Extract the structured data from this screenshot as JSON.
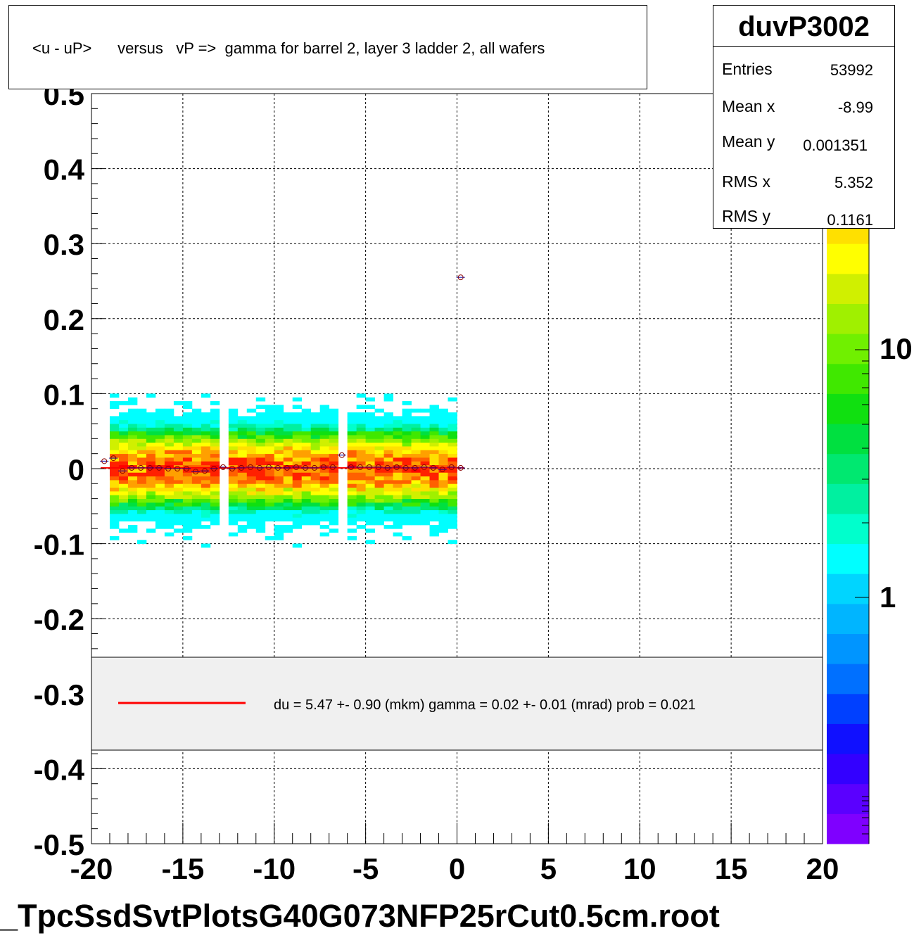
{
  "title": "<u - uP>      versus   vP =>  gamma for barrel 2, layer 3 ladder 2, all wafers",
  "stats": {
    "name": "duvP3002",
    "rows": [
      {
        "label": "Entries",
        "value": "53992"
      },
      {
        "label": "Mean x",
        "value": "-8.99"
      },
      {
        "label": "Mean y",
        "value": "0.001351"
      },
      {
        "label": "RMS x",
        "value": "5.352"
      },
      {
        "label": "RMS y",
        "value": "0.1161"
      }
    ]
  },
  "legend": {
    "text": "du =    5.47 +-  0.90 (mkm) gamma =    0.02 +-  0.01 (mrad) prob = 0.021",
    "line_color": "#ff0000"
  },
  "file_label": "_TpcSsdSvtPlotsG40G073NFP25rCut0.5cm.root",
  "palette": [
    "#7f00ff",
    "#5a00ff",
    "#3300ff",
    "#1010ff",
    "#0040ff",
    "#0070ff",
    "#0095ff",
    "#00b5ff",
    "#00d5ff",
    "#00ffff",
    "#00ffcc",
    "#00f0a0",
    "#00e870",
    "#00e040",
    "#10e010",
    "#40e800",
    "#70f000",
    "#a0f000",
    "#d0f000",
    "#ffff00",
    "#ffe000",
    "#ffa000",
    "#ff6000",
    "#ff2000",
    "#ff0000"
  ],
  "chart_data": {
    "type": "heatmap",
    "xlim": [
      -20,
      20
    ],
    "ylim": [
      -0.5,
      0.5
    ],
    "x_ticks": [
      "-20",
      "-15",
      "-10",
      "-5",
      "0",
      "5",
      "10",
      "15",
      "20"
    ],
    "y_ticks": [
      "-0.5",
      "-0.4",
      "-0.3",
      "-0.2",
      "-0.1",
      "0",
      "0.1",
      "0.2",
      "0.3",
      "0.4",
      "0.5"
    ],
    "z_tick_labels": [
      "1",
      "10"
    ],
    "z_clipped_label": "0",
    "grid": true,
    "log_z": true,
    "populated_x_range": [
      -19,
      0
    ],
    "gaps_x": [
      -12.6,
      -6.1
    ],
    "profile_points": [
      {
        "x": -19.3,
        "y": 0.01
      },
      {
        "x": -18.8,
        "y": 0.014
      },
      {
        "x": -18.3,
        "y": -0.003
      },
      {
        "x": -17.8,
        "y": 0.001
      },
      {
        "x": -17.3,
        "y": 0.001
      },
      {
        "x": -16.8,
        "y": 0.001
      },
      {
        "x": -16.3,
        "y": 0.001
      },
      {
        "x": -15.8,
        "y": 0.0
      },
      {
        "x": -15.3,
        "y": 0.0
      },
      {
        "x": -14.8,
        "y": 0.0
      },
      {
        "x": -14.3,
        "y": -0.004
      },
      {
        "x": -13.8,
        "y": -0.003
      },
      {
        "x": -13.3,
        "y": 0.0
      },
      {
        "x": -12.8,
        "y": 0.002
      },
      {
        "x": -12.3,
        "y": 0.0
      },
      {
        "x": -11.8,
        "y": 0.001
      },
      {
        "x": -11.3,
        "y": 0.002
      },
      {
        "x": -10.8,
        "y": 0.001
      },
      {
        "x": -10.3,
        "y": 0.002
      },
      {
        "x": -9.8,
        "y": 0.001
      },
      {
        "x": -9.3,
        "y": 0.001
      },
      {
        "x": -8.8,
        "y": 0.002
      },
      {
        "x": -8.3,
        "y": 0.001
      },
      {
        "x": -7.8,
        "y": 0.001
      },
      {
        "x": -7.3,
        "y": 0.002
      },
      {
        "x": -6.8,
        "y": 0.002
      },
      {
        "x": -6.3,
        "y": 0.018
      },
      {
        "x": -5.8,
        "y": 0.002
      },
      {
        "x": -5.3,
        "y": 0.002
      },
      {
        "x": -4.8,
        "y": 0.002
      },
      {
        "x": -4.3,
        "y": 0.002
      },
      {
        "x": -3.8,
        "y": 0.001
      },
      {
        "x": -3.3,
        "y": 0.002
      },
      {
        "x": -2.8,
        "y": 0.001
      },
      {
        "x": -2.3,
        "y": 0.001
      },
      {
        "x": -1.8,
        "y": 0.002
      },
      {
        "x": -1.3,
        "y": 0.001
      },
      {
        "x": -0.8,
        "y": -0.001
      },
      {
        "x": -0.3,
        "y": 0.002
      },
      {
        "x": 0.2,
        "y": 0.001
      },
      {
        "x": 0.2,
        "y": 0.255
      }
    ],
    "fit_line": {
      "x": [
        -19.5,
        0.4
      ],
      "y": [
        0.001,
        0.001
      ]
    }
  }
}
